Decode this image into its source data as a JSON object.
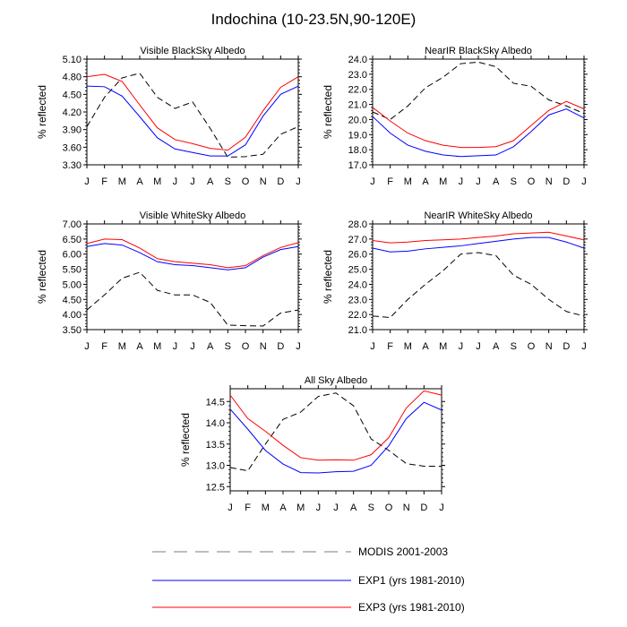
{
  "figure": {
    "title": "Indochina (10-23.5N,90-120E)"
  },
  "legend": {
    "entries": [
      {
        "label": "MODIS 2001-2003",
        "color": "#000000",
        "dash": "dashed"
      },
      {
        "label": "EXP1 (yrs 1981-2010)",
        "color": "#0000ff",
        "dash": "solid"
      },
      {
        "label": "EXP3 (yrs 1981-2010)",
        "color": "#ff0000",
        "dash": "solid"
      }
    ]
  },
  "chart_data": [
    {
      "type": "line",
      "title": "Visible BlackSky Albedo",
      "ylabel": "% reflected",
      "xlabel": "",
      "categories": [
        "J",
        "F",
        "M",
        "A",
        "M",
        "J",
        "J",
        "A",
        "S",
        "O",
        "N",
        "D",
        "J"
      ],
      "ylim": [
        3.3,
        5.1
      ],
      "yticks": [
        "3.30",
        "3.60",
        "3.90",
        "4.20",
        "4.50",
        "4.80",
        "5.10"
      ],
      "series": [
        {
          "name": "MODIS 2001-2003",
          "values": [
            3.95,
            4.45,
            4.78,
            4.86,
            4.45,
            4.26,
            4.37,
            3.92,
            3.43,
            3.44,
            3.48,
            3.82,
            3.95
          ]
        },
        {
          "name": "EXP1 (yrs 1981-2010)",
          "values": [
            4.64,
            4.63,
            4.47,
            4.12,
            3.76,
            3.57,
            3.51,
            3.45,
            3.45,
            3.64,
            4.13,
            4.5,
            4.64
          ]
        },
        {
          "name": "EXP3 (yrs 1981-2010)",
          "values": [
            4.8,
            4.84,
            4.72,
            4.32,
            3.93,
            3.73,
            3.66,
            3.58,
            3.55,
            3.77,
            4.22,
            4.62,
            4.8
          ]
        }
      ]
    },
    {
      "type": "line",
      "title": "NearIR BlackSky Albedo",
      "ylabel": "% reflected",
      "xlabel": "",
      "categories": [
        "J",
        "F",
        "M",
        "A",
        "M",
        "J",
        "J",
        "A",
        "S",
        "O",
        "N",
        "D",
        "J"
      ],
      "ylim": [
        17.0,
        24.0
      ],
      "yticks": [
        "17.0",
        "18.0",
        "19.0",
        "20.0",
        "21.0",
        "22.0",
        "23.0",
        "24.0"
      ],
      "series": [
        {
          "name": "MODIS 2001-2003",
          "values": [
            20.5,
            20.0,
            20.9,
            22.1,
            22.8,
            23.7,
            23.8,
            23.5,
            22.4,
            22.2,
            21.3,
            20.9,
            20.4
          ]
        },
        {
          "name": "EXP1 (yrs 1981-2010)",
          "values": [
            20.2,
            19.1,
            18.3,
            17.9,
            17.65,
            17.55,
            17.6,
            17.65,
            18.2,
            19.2,
            20.3,
            20.7,
            20.1
          ]
        },
        {
          "name": "EXP3 (yrs 1981-2010)",
          "values": [
            20.8,
            19.9,
            19.1,
            18.6,
            18.3,
            18.15,
            18.15,
            18.2,
            18.6,
            19.6,
            20.6,
            21.2,
            20.7
          ]
        }
      ]
    },
    {
      "type": "line",
      "title": "Visible WhiteSky Albedo",
      "ylabel": "% reflected",
      "xlabel": "",
      "categories": [
        "J",
        "F",
        "M",
        "A",
        "M",
        "J",
        "J",
        "A",
        "S",
        "O",
        "N",
        "D",
        "J"
      ],
      "ylim": [
        3.5,
        7.0
      ],
      "yticks": [
        "3.50",
        "4.00",
        "4.50",
        "5.00",
        "5.50",
        "6.00",
        "6.50",
        "7.00"
      ],
      "series": [
        {
          "name": "MODIS 2001-2003",
          "values": [
            4.15,
            4.65,
            5.2,
            5.4,
            4.8,
            4.65,
            4.65,
            4.4,
            3.65,
            3.63,
            3.62,
            4.05,
            4.15
          ]
        },
        {
          "name": "EXP1 (yrs 1981-2010)",
          "values": [
            6.25,
            6.35,
            6.3,
            6.05,
            5.75,
            5.65,
            5.62,
            5.55,
            5.48,
            5.55,
            5.9,
            6.15,
            6.25
          ]
        },
        {
          "name": "EXP3 (yrs 1981-2010)",
          "values": [
            6.35,
            6.5,
            6.48,
            6.2,
            5.85,
            5.75,
            5.7,
            5.65,
            5.55,
            5.62,
            5.95,
            6.22,
            6.38
          ]
        }
      ]
    },
    {
      "type": "line",
      "title": "NearIR WhiteSky Albedo",
      "ylabel": "% reflected",
      "xlabel": "",
      "categories": [
        "J",
        "F",
        "M",
        "A",
        "M",
        "J",
        "J",
        "A",
        "S",
        "O",
        "N",
        "D",
        "J"
      ],
      "ylim": [
        21.0,
        28.0
      ],
      "yticks": [
        "21.0",
        "22.0",
        "23.0",
        "24.0",
        "25.0",
        "26.0",
        "27.0",
        "28.0"
      ],
      "series": [
        {
          "name": "MODIS 2001-2003",
          "values": [
            21.9,
            21.8,
            23.0,
            24.0,
            24.9,
            26.0,
            26.1,
            25.9,
            24.6,
            24.0,
            23.0,
            22.2,
            21.9
          ]
        },
        {
          "name": "EXP1 (yrs 1981-2010)",
          "values": [
            26.4,
            26.15,
            26.2,
            26.35,
            26.45,
            26.55,
            26.7,
            26.85,
            27.0,
            27.1,
            27.1,
            26.8,
            26.4
          ]
        },
        {
          "name": "EXP3 (yrs 1981-2010)",
          "values": [
            26.9,
            26.75,
            26.8,
            26.9,
            26.95,
            27.0,
            27.1,
            27.2,
            27.35,
            27.4,
            27.45,
            27.2,
            26.95
          ]
        }
      ]
    },
    {
      "type": "line",
      "title": "All Sky Albedo",
      "ylabel": "% reflected",
      "xlabel": "",
      "categories": [
        "J",
        "F",
        "M",
        "A",
        "M",
        "J",
        "J",
        "A",
        "S",
        "O",
        "N",
        "D",
        "J"
      ],
      "ylim": [
        12.4,
        14.8
      ],
      "yticks": [
        "12.5",
        "13.0",
        "13.5",
        "14.0",
        "14.5"
      ],
      "series": [
        {
          "name": "MODIS 2001-2003",
          "values": [
            12.95,
            12.87,
            13.5,
            14.08,
            14.25,
            14.62,
            14.7,
            14.4,
            13.62,
            13.35,
            13.04,
            12.98,
            12.98
          ]
        },
        {
          "name": "EXP1 (yrs 1981-2010)",
          "values": [
            14.32,
            13.85,
            13.35,
            13.03,
            12.83,
            12.82,
            12.85,
            12.86,
            13.0,
            13.46,
            14.1,
            14.48,
            14.3
          ]
        },
        {
          "name": "EXP3 (yrs 1981-2010)",
          "values": [
            14.65,
            14.1,
            13.8,
            13.47,
            13.18,
            13.12,
            13.13,
            13.12,
            13.25,
            13.65,
            14.35,
            14.75,
            14.65
          ]
        }
      ]
    }
  ]
}
